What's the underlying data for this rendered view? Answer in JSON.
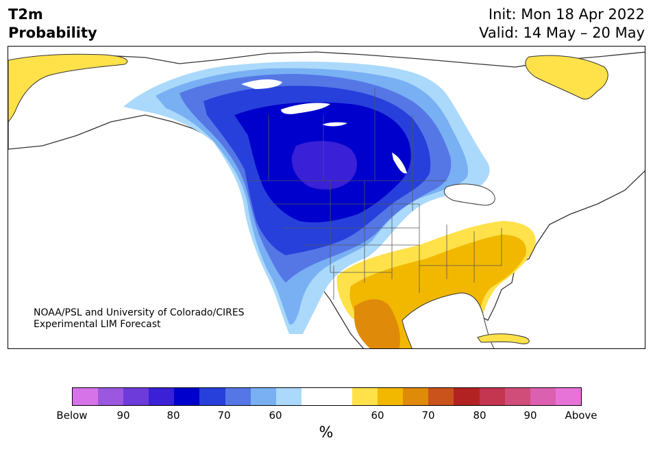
{
  "header": {
    "variable": "T2m",
    "quantity": "Probability",
    "init": "Init: Mon 18 Apr 2022",
    "valid": "Valid: 14 May – 20 May"
  },
  "map": {
    "credit_line1": "NOAA/PSL and University of Colorado/CIRES",
    "credit_line2": "Experimental LIM Forecast",
    "colors": {
      "ocean": "#ffffff",
      "land": "#ffffff",
      "coast": "#333333",
      "borders": "#555555",
      "lakes": "#ffffff"
    }
  },
  "colorbar": {
    "colors": [
      "#d673e8",
      "#9b57e0",
      "#6c3bd9",
      "#3a20d6",
      "#0000cc",
      "#2740db",
      "#5577e6",
      "#79b0f3",
      "#aad9fb",
      "#ffffff",
      "#ffffff",
      "#ffe14a",
      "#f2b800",
      "#e08a0a",
      "#c9531a",
      "#b22222",
      "#c43550",
      "#d04d7a",
      "#dc60b0",
      "#e873d8"
    ],
    "tick_labels": [
      "Below",
      "90",
      "80",
      "70",
      "60",
      "60",
      "70",
      "80",
      "90",
      "Above"
    ],
    "unit": "%"
  }
}
